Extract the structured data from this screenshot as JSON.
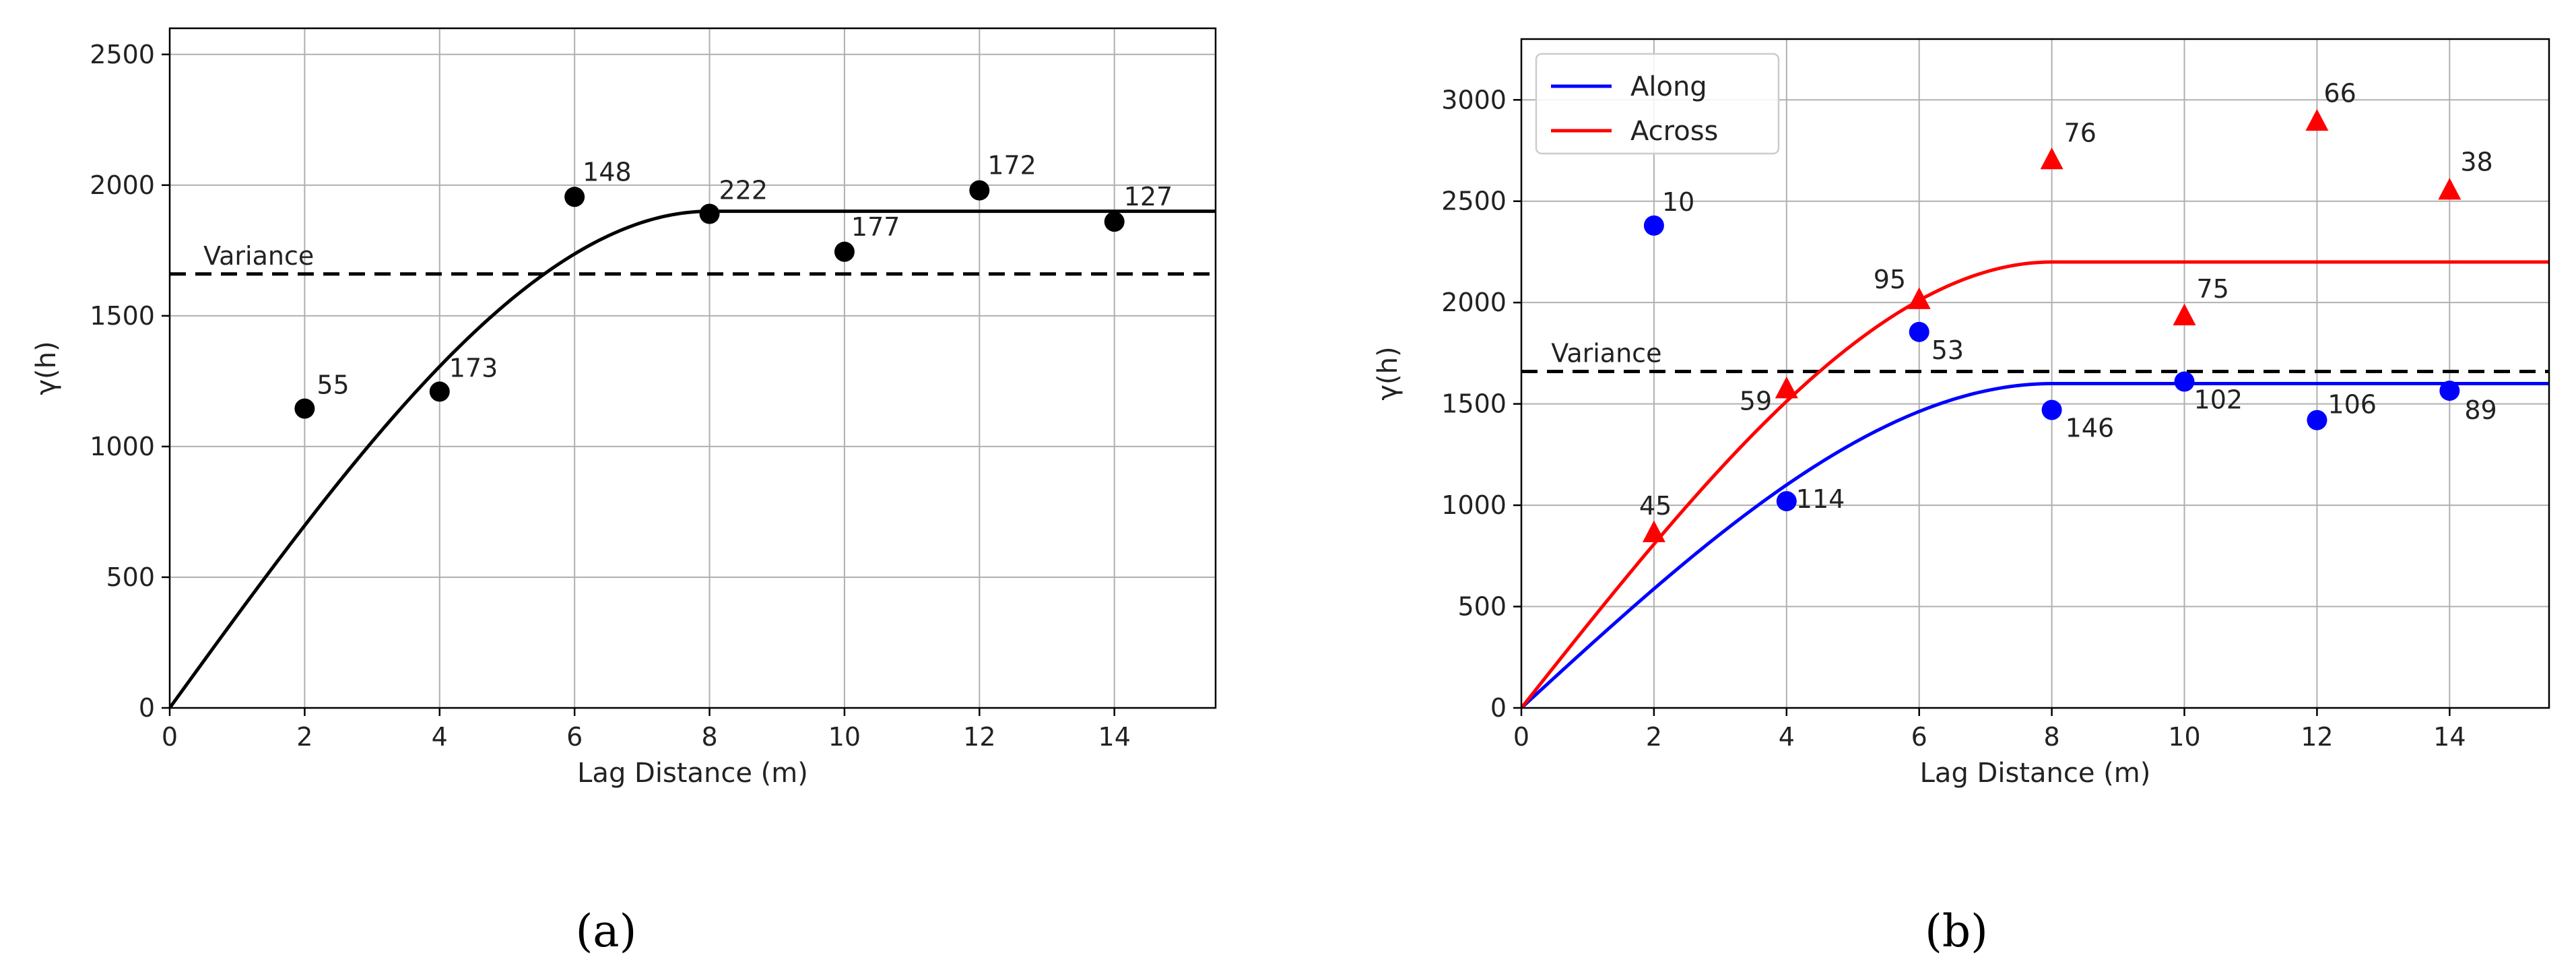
{
  "panels": [
    {
      "panel_label": "(a)",
      "chart_data": {
        "type": "scatter",
        "title": "",
        "xlabel": "Lag Distance (m)",
        "ylabel": "γ(h)",
        "xlim": [
          0,
          15.5
        ],
        "ylim": [
          0,
          2600
        ],
        "xticks": [
          0,
          2,
          4,
          6,
          8,
          10,
          12,
          14
        ],
        "yticks": [
          0,
          500,
          1000,
          1500,
          2000,
          2500
        ],
        "grid": true,
        "variance": {
          "label": "Variance",
          "value": 1660
        },
        "series": [
          {
            "marker": "circle",
            "color": "#000000",
            "x": [
              2,
              4,
              6,
              8,
              10,
              12,
              14
            ],
            "y": [
              1145,
              1210,
              1955,
              1890,
              1745,
              1980,
              1860
            ],
            "labels": [
              "55",
              "173",
              "148",
              "222",
              "177",
              "172",
              "127"
            ]
          }
        ],
        "models": [
          {
            "kind": "spherical",
            "color": "#000000",
            "sill": 1900,
            "range": 8
          }
        ]
      }
    },
    {
      "panel_label": "(b)",
      "chart_data": {
        "type": "scatter",
        "title": "",
        "xlabel": "Lag Distance (m)",
        "ylabel": "γ(h)",
        "xlim": [
          0,
          15.5
        ],
        "ylim": [
          0,
          3300
        ],
        "xticks": [
          0,
          2,
          4,
          6,
          8,
          10,
          12,
          14
        ],
        "yticks": [
          0,
          500,
          1000,
          1500,
          2000,
          2500,
          3000
        ],
        "grid": true,
        "legend_position": "top-left",
        "variance": {
          "label": "Variance",
          "value": 1660
        },
        "series": [
          {
            "name": "Along",
            "marker": "circle",
            "color": "#0000ff",
            "x": [
              2,
              4,
              6,
              8,
              10,
              12,
              14
            ],
            "y": [
              2380,
              1020,
              1855,
              1470,
              1610,
              1420,
              1565
            ],
            "labels": [
              "10",
              "114",
              "53",
              "146",
              "102",
              "106",
              "89"
            ]
          },
          {
            "name": "Across",
            "marker": "triangle",
            "color": "#ff0000",
            "x": [
              2,
              4,
              6,
              8,
              10,
              12,
              14
            ],
            "y": [
              860,
              1570,
              2010,
              2700,
              1930,
              2890,
              2550
            ],
            "labels": [
              "45",
              "59",
              "95",
              "76",
              "75",
              "66",
              "38"
            ]
          }
        ],
        "models": [
          {
            "kind": "spherical",
            "series": "Along",
            "color": "#0000ff",
            "sill": 1600,
            "range": 8
          },
          {
            "kind": "spherical",
            "series": "Across",
            "color": "#ff0000",
            "sill": 2200,
            "range": 8
          }
        ]
      }
    }
  ]
}
